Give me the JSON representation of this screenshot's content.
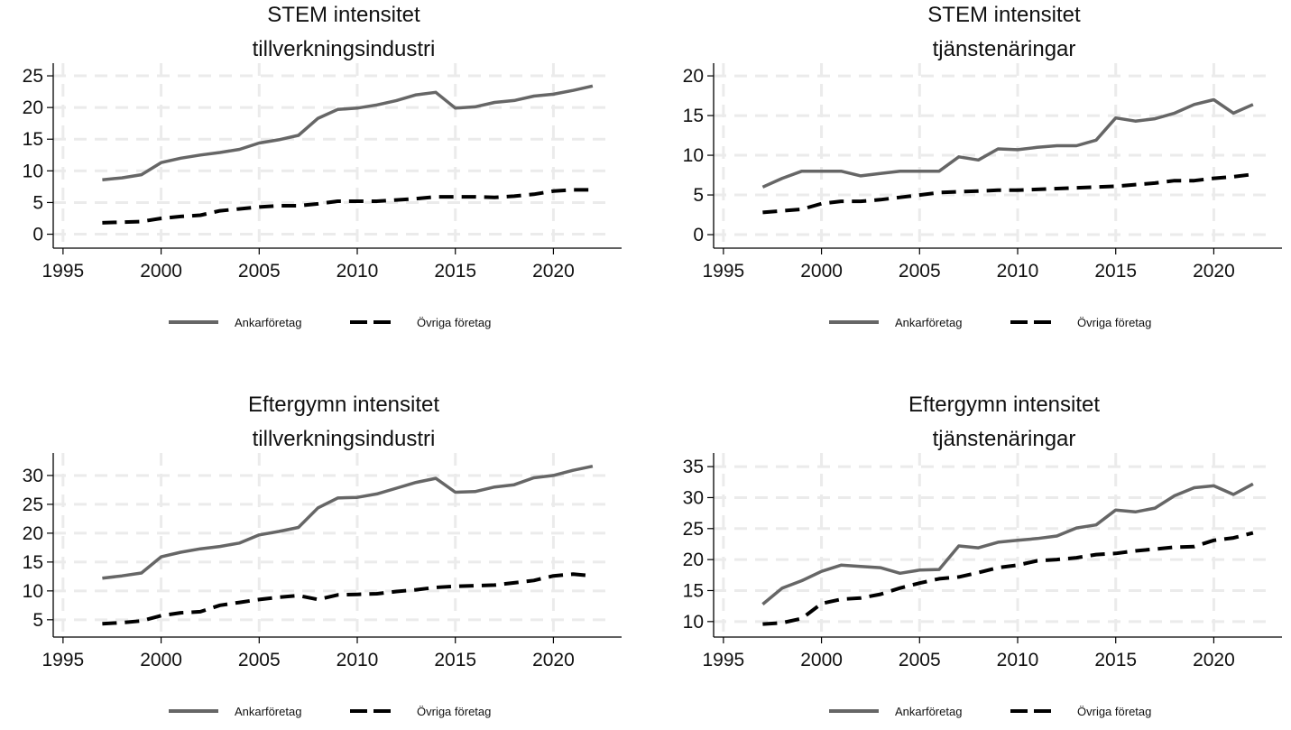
{
  "legend": {
    "series_a": "Ankarföretag",
    "series_b": "Övriga företag"
  },
  "colors": {
    "series_a": "#666666",
    "series_b": "#000000",
    "grid": "#ebebeb",
    "axis": "#000000"
  },
  "chart_data": [
    {
      "type": "line",
      "title": "STEM intensitet",
      "subtitle": "tillverkningsindustri",
      "xlabel": "",
      "ylabel": "",
      "xlim": [
        1994.5,
        2023.2
      ],
      "ylim": [
        -2.2,
        27.0
      ],
      "xticks": [
        1995,
        2000,
        2005,
        2010,
        2015,
        2020
      ],
      "yticks": [
        0,
        5,
        10,
        15,
        20,
        25
      ],
      "grid": true,
      "legend_position": "bottom",
      "x": [
        1997,
        1998,
        1999,
        2000,
        2001,
        2002,
        2003,
        2004,
        2005,
        2006,
        2007,
        2008,
        2009,
        2010,
        2011,
        2012,
        2013,
        2014,
        2015,
        2016,
        2017,
        2018,
        2019,
        2020,
        2021,
        2022
      ],
      "series": [
        {
          "name": "Ankarföretag",
          "style": "solid",
          "values": [
            8.6,
            8.9,
            9.4,
            11.3,
            12.0,
            12.5,
            12.9,
            13.4,
            14.4,
            14.9,
            15.6,
            18.3,
            19.7,
            19.9,
            20.4,
            21.1,
            22.0,
            22.4,
            19.9,
            20.1,
            20.8,
            21.1,
            21.8,
            22.1,
            22.7,
            23.4
          ]
        },
        {
          "name": "Övriga företag",
          "style": "dashed",
          "values": [
            1.8,
            1.9,
            2.0,
            2.5,
            2.8,
            3.0,
            3.7,
            4.0,
            4.3,
            4.5,
            4.5,
            4.8,
            5.2,
            5.2,
            5.2,
            5.4,
            5.6,
            5.9,
            5.9,
            5.9,
            5.8,
            6.0,
            6.3,
            6.8,
            7.0,
            7.0
          ]
        }
      ]
    },
    {
      "type": "line",
      "title": "STEM intensitet",
      "subtitle": "tjänstenäringar",
      "xlabel": "",
      "ylabel": "",
      "xlim": [
        1994.5,
        2023.2
      ],
      "ylim": [
        -1.7,
        21.6
      ],
      "xticks": [
        1995,
        2000,
        2005,
        2010,
        2015,
        2020
      ],
      "yticks": [
        0,
        5,
        10,
        15,
        20
      ],
      "grid": true,
      "legend_position": "bottom",
      "x": [
        1997,
        1998,
        1999,
        2000,
        2001,
        2002,
        2003,
        2004,
        2005,
        2006,
        2007,
        2008,
        2009,
        2010,
        2011,
        2012,
        2013,
        2014,
        2015,
        2016,
        2017,
        2018,
        2019,
        2020,
        2021,
        2022
      ],
      "series": [
        {
          "name": "Ankarföretag",
          "style": "solid",
          "values": [
            6.0,
            7.1,
            8.0,
            8.0,
            8.0,
            7.4,
            7.7,
            8.0,
            8.0,
            8.0,
            9.8,
            9.4,
            10.8,
            10.7,
            11.0,
            11.2,
            11.2,
            11.9,
            14.7,
            14.3,
            14.6,
            15.3,
            16.4,
            17.0,
            15.3,
            16.4
          ]
        },
        {
          "name": "Övriga företag",
          "style": "dashed",
          "values": [
            2.8,
            3.0,
            3.2,
            3.9,
            4.2,
            4.2,
            4.4,
            4.7,
            5.0,
            5.3,
            5.4,
            5.5,
            5.6,
            5.6,
            5.7,
            5.8,
            5.9,
            6.0,
            6.1,
            6.3,
            6.5,
            6.8,
            6.8,
            7.1,
            7.3,
            7.6
          ]
        }
      ]
    },
    {
      "type": "line",
      "title": "Eftergymn intensitet",
      "subtitle": "tillverkningsindustri",
      "xlabel": "",
      "ylabel": "",
      "xlim": [
        1994.5,
        2023.2
      ],
      "ylim": [
        2.0,
        33.9
      ],
      "xticks": [
        1995,
        2000,
        2005,
        2010,
        2015,
        2020
      ],
      "yticks": [
        5,
        10,
        15,
        20,
        25,
        30
      ],
      "grid": true,
      "legend_position": "bottom",
      "x": [
        1997,
        1998,
        1999,
        2000,
        2001,
        2002,
        2003,
        2004,
        2005,
        2006,
        2007,
        2008,
        2009,
        2010,
        2011,
        2012,
        2013,
        2014,
        2015,
        2016,
        2017,
        2018,
        2019,
        2020,
        2021,
        2022
      ],
      "series": [
        {
          "name": "Ankarföretag",
          "style": "solid",
          "values": [
            12.2,
            12.6,
            13.1,
            15.9,
            16.7,
            17.3,
            17.7,
            18.3,
            19.7,
            20.3,
            21.0,
            24.4,
            26.1,
            26.2,
            26.8,
            27.8,
            28.8,
            29.5,
            27.1,
            27.2,
            28.0,
            28.4,
            29.6,
            30.0,
            30.9,
            31.6
          ]
        },
        {
          "name": "Övriga företag",
          "style": "dashed",
          "values": [
            4.3,
            4.5,
            4.8,
            5.7,
            6.2,
            6.4,
            7.5,
            8.0,
            8.5,
            8.9,
            9.2,
            8.5,
            9.3,
            9.4,
            9.5,
            9.9,
            10.2,
            10.6,
            10.8,
            10.9,
            11.0,
            11.4,
            11.8,
            12.6,
            12.9,
            12.6
          ]
        }
      ]
    },
    {
      "type": "line",
      "title": "Eftergymn intensitet",
      "subtitle": "tjänstenäringar",
      "xlabel": "",
      "ylabel": "",
      "xlim": [
        1994.5,
        2023.2
      ],
      "ylim": [
        7.5,
        37.2
      ],
      "xticks": [
        1995,
        2000,
        2005,
        2010,
        2015,
        2020
      ],
      "yticks": [
        10,
        15,
        20,
        25,
        30,
        35
      ],
      "grid": true,
      "legend_position": "bottom",
      "x": [
        1997,
        1998,
        1999,
        2000,
        2001,
        2002,
        2003,
        2004,
        2005,
        2006,
        2007,
        2008,
        2009,
        2010,
        2011,
        2012,
        2013,
        2014,
        2015,
        2016,
        2017,
        2018,
        2019,
        2020,
        2021,
        2022
      ],
      "series": [
        {
          "name": "Ankarföretag",
          "style": "solid",
          "values": [
            12.8,
            15.4,
            16.6,
            18.1,
            19.1,
            18.9,
            18.7,
            17.8,
            18.3,
            18.4,
            22.2,
            21.9,
            22.8,
            23.1,
            23.4,
            23.8,
            25.1,
            25.6,
            28.0,
            27.7,
            28.3,
            30.3,
            31.6,
            31.9,
            30.5,
            32.2
          ]
        },
        {
          "name": "Övriga företag",
          "style": "dashed",
          "values": [
            9.6,
            9.8,
            10.5,
            12.9,
            13.6,
            13.8,
            14.4,
            15.4,
            16.2,
            16.9,
            17.2,
            17.9,
            18.7,
            19.1,
            19.8,
            20.0,
            20.3,
            20.8,
            21.0,
            21.4,
            21.7,
            22.0,
            22.1,
            23.1,
            23.5,
            24.3
          ]
        }
      ]
    }
  ]
}
